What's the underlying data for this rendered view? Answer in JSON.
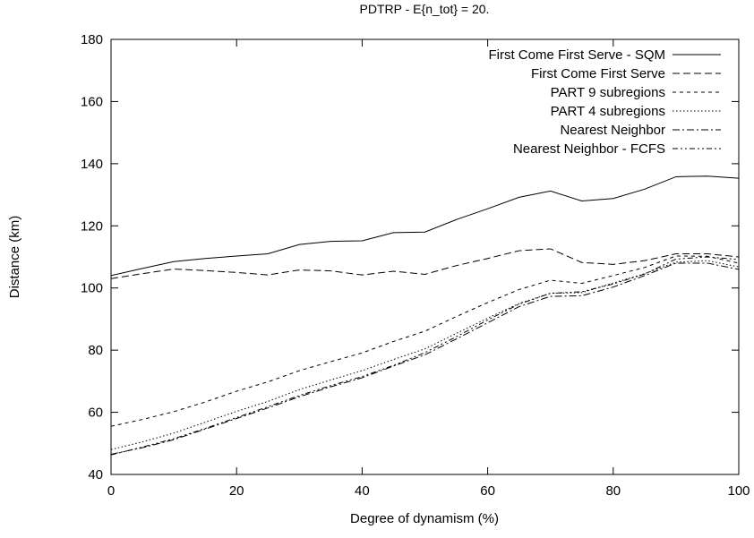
{
  "chart_data": {
    "type": "line",
    "title": "PDTRP - E{n_tot} = 20.",
    "xlabel": "Degree of dynamism (%)",
    "ylabel": "Distance (km)",
    "xlim": [
      0,
      100
    ],
    "ylim": [
      40,
      180
    ],
    "xticks": [
      0,
      20,
      40,
      60,
      80,
      100
    ],
    "yticks": [
      40,
      60,
      80,
      100,
      120,
      140,
      160,
      180
    ],
    "grid": false,
    "legend_position": "top-right",
    "x": [
      0,
      5,
      10,
      15,
      20,
      25,
      30,
      35,
      40,
      45,
      50,
      55,
      60,
      65,
      70,
      75,
      80,
      85,
      90,
      95,
      100
    ],
    "series": [
      {
        "name": "First Come First Serve - SQM",
        "dash": "solid",
        "values": [
          104,
          106.3,
          108.5,
          109.5,
          110.3,
          111,
          114,
          115,
          115.2,
          117.8,
          118,
          122,
          125.5,
          129.2,
          131.2,
          128,
          128.8,
          131.8,
          135.8,
          136,
          135.3
        ]
      },
      {
        "name": "First Come First Serve",
        "dash": "dashed",
        "values": [
          103,
          104.6,
          106.1,
          105.6,
          105,
          104.2,
          105.8,
          105.5,
          104.2,
          105.4,
          104.4,
          107.2,
          109.5,
          112,
          112.6,
          108.2,
          107.6,
          108.8,
          111,
          111,
          110
        ]
      },
      {
        "name": "PART 9 subregions",
        "dash": "short-dash",
        "values": [
          55.5,
          57.7,
          60.2,
          63.3,
          66.8,
          69.8,
          73.4,
          76.3,
          79.1,
          82.8,
          86.1,
          90.8,
          95.3,
          99.5,
          102.5,
          101.5,
          104,
          106.6,
          110.3,
          110.2,
          108
        ]
      },
      {
        "name": "PART 4 subregions",
        "dash": "dotted",
        "values": [
          48,
          50.5,
          53.3,
          56.8,
          60.3,
          63.5,
          67.3,
          70.4,
          73.4,
          77,
          80.4,
          85.4,
          90.3,
          95,
          98.3,
          98.5,
          101.6,
          104.6,
          108.3,
          108.8,
          106.8
        ]
      },
      {
        "name": "Nearest Neighbor",
        "dash": "dash-dot",
        "values": [
          46.5,
          48.6,
          51.2,
          54.6,
          58,
          61.4,
          65,
          68.2,
          71.1,
          74.9,
          78.5,
          83.6,
          88.8,
          94,
          97.3,
          97.5,
          100.3,
          104,
          108,
          108,
          106
        ]
      },
      {
        "name": "Nearest Neighbor - FCFS",
        "dash": "dash-dot-dot",
        "values": [
          46.3,
          48.8,
          51.5,
          54.8,
          58.3,
          61.8,
          65.4,
          68.6,
          71.5,
          75.1,
          79.2,
          84.3,
          89.7,
          94.8,
          98.3,
          98.8,
          101.3,
          104.5,
          109.3,
          110,
          109.2
        ]
      }
    ]
  }
}
